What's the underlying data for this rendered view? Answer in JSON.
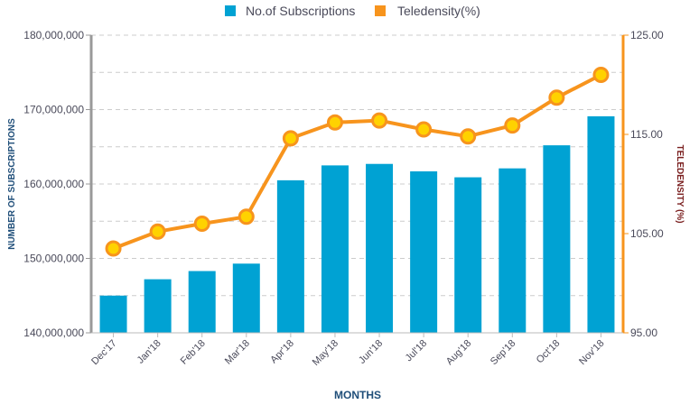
{
  "chart_data": {
    "type": "bar",
    "categories": [
      "Dec'17",
      "Jan'18",
      "Feb'18",
      "Mar'18",
      "Apr'18",
      "May'18",
      "Jun'18",
      "Jul'18",
      "Aug'18",
      "Sep'18",
      "Oct'18",
      "Nov'18"
    ],
    "series": [
      {
        "name": "No.of Subscriptions",
        "type": "bar",
        "axis": "left",
        "color": "#00a2d3",
        "values": [
          145000000,
          147200000,
          148300000,
          149300000,
          160500000,
          162500000,
          162700000,
          161700000,
          160900000,
          162100000,
          165200000,
          169100000
        ]
      },
      {
        "name": "Teledensity(%)",
        "type": "line",
        "axis": "right",
        "color": "#f7941d",
        "marker_fill": "#ffd200",
        "values": [
          103.5,
          105.2,
          106.0,
          106.7,
          114.6,
          116.2,
          116.4,
          115.5,
          114.8,
          115.9,
          118.7,
          121.0
        ]
      }
    ],
    "xlabel": "MONTHS",
    "ylabel_left": "NUMBER OF SUBSCRIPTIONS",
    "ylabel_right": "TELEDENSITY (%)",
    "ylim_left": [
      140000000,
      180000000
    ],
    "ylim_right": [
      95,
      125
    ],
    "left_ticks": [
      {
        "value": 140000000,
        "label": "140,000,000"
      },
      {
        "value": 150000000,
        "label": "150,000,000"
      },
      {
        "value": 160000000,
        "label": "160,000,000"
      },
      {
        "value": 170000000,
        "label": "170,000,000"
      },
      {
        "value": 180000000,
        "label": "180,000,000"
      }
    ],
    "right_ticks": [
      {
        "value": 95,
        "label": "95.00"
      },
      {
        "value": 105,
        "label": "105.00"
      },
      {
        "value": 115,
        "label": "115.00"
      },
      {
        "value": 125,
        "label": "125.00"
      }
    ],
    "grid": true,
    "legend_position": "top-center",
    "colors": {
      "left_axis": "#999999",
      "right_axis": "#f7941d",
      "grid": "#cccccc"
    }
  }
}
